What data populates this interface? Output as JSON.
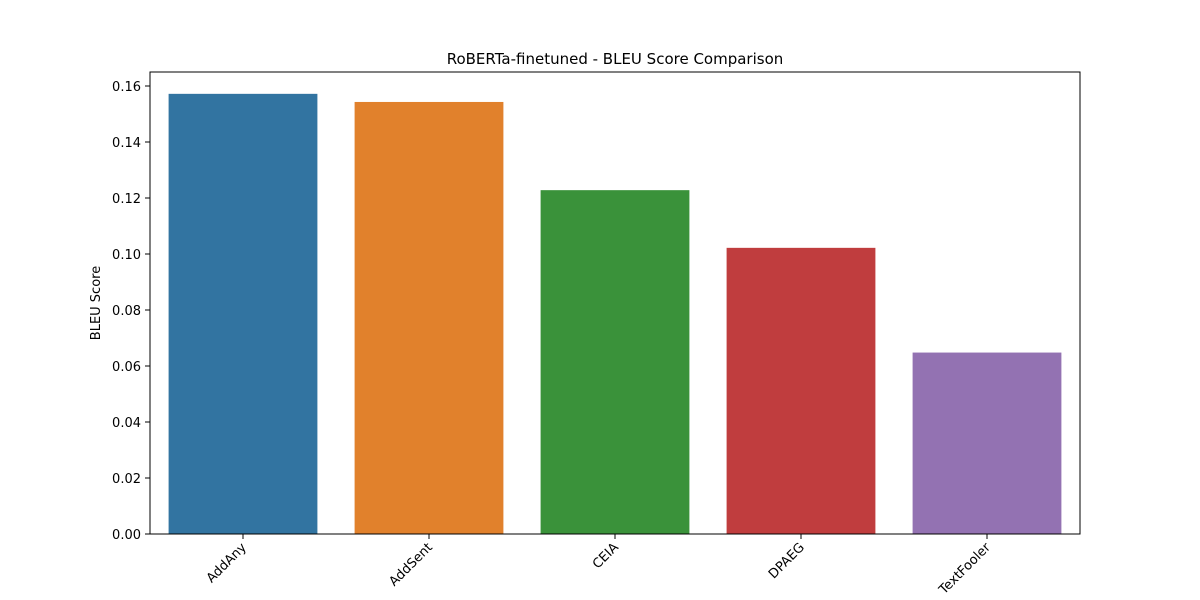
{
  "chart_data": {
    "type": "bar",
    "title": "RoBERTa-finetuned - BLEU Score Comparison",
    "xlabel": "",
    "ylabel": "BLEU Score",
    "categories": [
      "AddAny",
      "AddSent",
      "CEIA",
      "DPAEG",
      "TextFooler"
    ],
    "values": [
      0.1572,
      0.1543,
      0.1228,
      0.1022,
      0.0648
    ],
    "colors": [
      "#3274a1",
      "#e1812c",
      "#3a923a",
      "#c03d3e",
      "#9372b2"
    ],
    "ylim": [
      0,
      0.165
    ],
    "yticks": [
      0.0,
      0.02,
      0.04,
      0.06,
      0.08,
      0.1,
      0.12,
      0.14,
      0.16
    ],
    "ytick_labels": [
      "0.00",
      "0.02",
      "0.04",
      "0.06",
      "0.08",
      "0.10",
      "0.12",
      "0.14",
      "0.16"
    ],
    "grid": false,
    "xtick_rotation": 45
  }
}
